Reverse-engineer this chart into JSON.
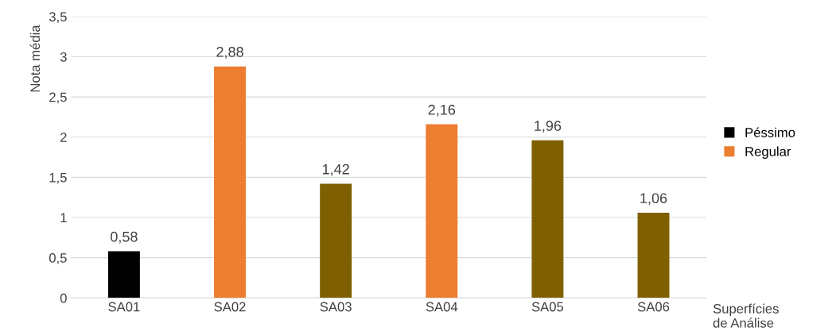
{
  "chart_data": {
    "type": "bar",
    "ylabel": "Nota média",
    "xlabel": "Superfícies de Análise",
    "categories": [
      "SA01",
      "SA02",
      "SA03",
      "SA04",
      "SA05",
      "SA06"
    ],
    "series": [
      {
        "name": "Péssimo",
        "color": "#000000",
        "values": [
          0.58,
          null,
          null,
          null,
          null,
          null
        ],
        "value_labels": [
          "0,58",
          null,
          null,
          null,
          null,
          null
        ]
      },
      {
        "name": "Regular",
        "color": "#ed7d31",
        "values": [
          null,
          2.88,
          null,
          2.16,
          null,
          null
        ],
        "value_labels": [
          null,
          "2,88",
          null,
          "2,16",
          null,
          null
        ]
      },
      {
        "color": "#7f6000",
        "values": [
          null,
          null,
          1.42,
          null,
          1.96,
          1.06
        ],
        "value_labels": [
          null,
          null,
          "1,42",
          null,
          "1,96",
          "1,06"
        ]
      }
    ],
    "ylim": [
      0,
      3.5
    ],
    "yticks": [
      0,
      {
        "value": 0.5,
        "label": "0,5"
      },
      1,
      {
        "value": 1.5,
        "label": "1,5"
      },
      2,
      {
        "value": 2.5,
        "label": "2,5"
      },
      3,
      {
        "value": 3.5,
        "label": "3,5"
      }
    ],
    "grid": "y",
    "legend": "right"
  }
}
